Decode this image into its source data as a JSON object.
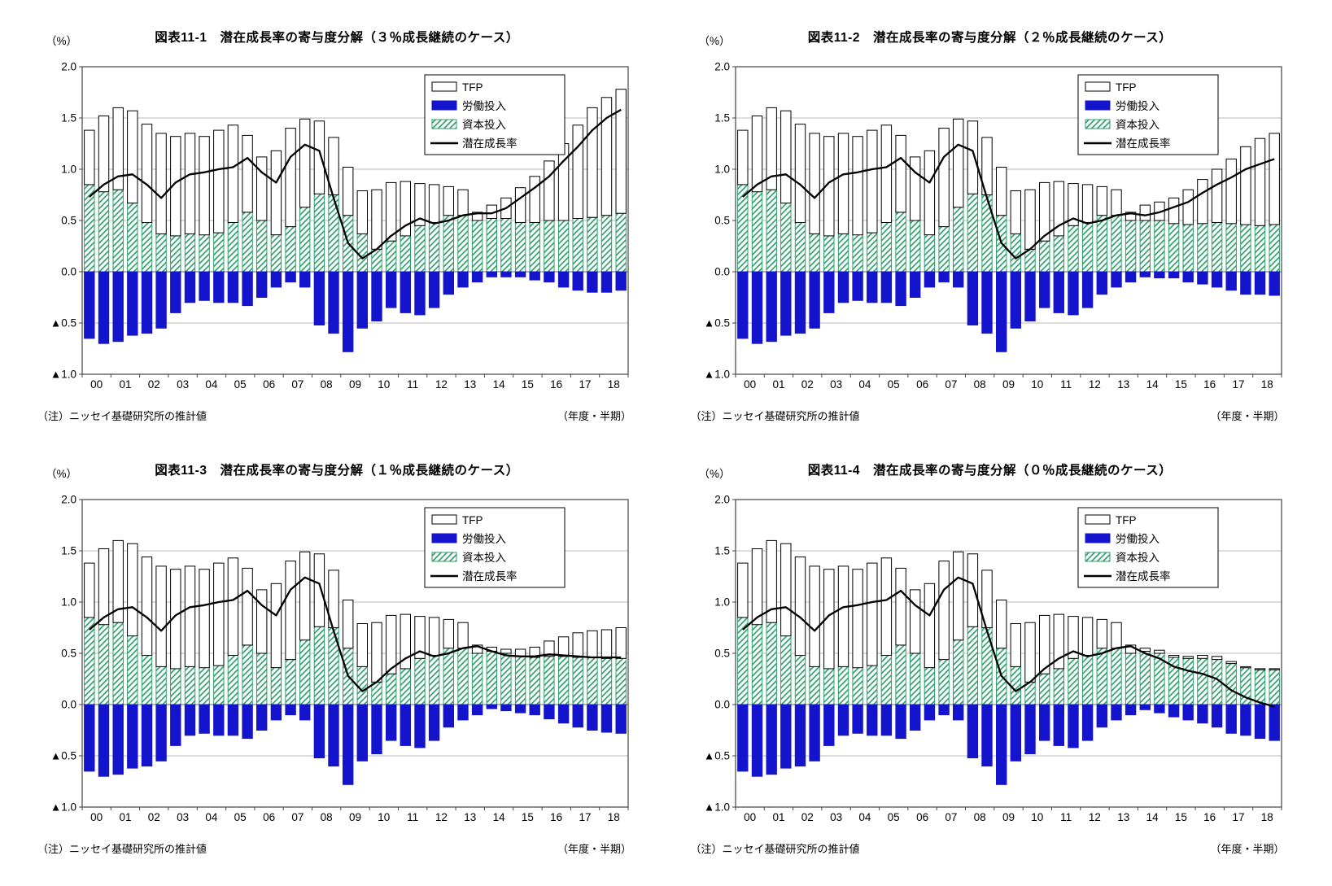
{
  "style": {
    "labor_color": "#1414cd",
    "capital_color": "#2e9e6e",
    "line_color": "#000000",
    "tfp_fill": "#ffffff",
    "bar_border": "#000000",
    "grid_color": "#bbbbbb",
    "axis_color": "#444444"
  },
  "charts": [
    {
      "title": "図表11-1　潜在成長率の寄与度分解（３％成長継続のケース）",
      "unit_label": "（%）",
      "source_note": "（注）ニッセイ基礎研究所の推計値",
      "axis_note": "（年度・半期）",
      "chart_data": {
        "type": "stacked_bar_with_line",
        "x_tick_labels": [
          "00",
          "01",
          "02",
          "03",
          "04",
          "05",
          "06",
          "07",
          "08",
          "09",
          "10",
          "11",
          "12",
          "13",
          "14",
          "15",
          "16",
          "17",
          "18"
        ],
        "ylim": [
          -1.0,
          2.0
        ],
        "y_ticks": [
          2.0,
          1.5,
          1.0,
          0.5,
          0.0,
          -0.5,
          -1.0
        ],
        "y_tick_labels": [
          "2.0",
          "1.5",
          "1.0",
          "0.5",
          "0.0",
          "▲0.5",
          "▲1.0"
        ],
        "legend_position": "top-right",
        "series": [
          {
            "name": "TFP",
            "kind": "bar",
            "stack": "positive-top",
            "values": [
              0.53,
              0.74,
              0.8,
              0.9,
              0.96,
              0.98,
              0.97,
              0.98,
              0.96,
              1.0,
              0.95,
              0.75,
              0.62,
              0.82,
              0.96,
              0.86,
              0.71,
              0.56,
              0.47,
              0.42,
              0.58,
              0.57,
              0.53,
              0.41,
              0.37,
              0.28,
              0.25,
              0.08,
              0.13,
              0.2,
              0.34,
              0.45,
              0.58,
              0.75,
              0.91,
              1.07,
              1.15,
              1.21
            ]
          },
          {
            "name": "労働投入",
            "kind": "bar",
            "stack": "negative",
            "values": [
              -0.65,
              -0.7,
              -0.68,
              -0.62,
              -0.6,
              -0.55,
              -0.4,
              -0.3,
              -0.28,
              -0.3,
              -0.3,
              -0.33,
              -0.25,
              -0.15,
              -0.1,
              -0.15,
              -0.52,
              -0.6,
              -0.78,
              -0.55,
              -0.48,
              -0.35,
              -0.4,
              -0.42,
              -0.35,
              -0.22,
              -0.15,
              -0.1,
              -0.05,
              -0.05,
              -0.05,
              -0.08,
              -0.1,
              -0.15,
              -0.18,
              -0.2,
              -0.2,
              -0.18
            ]
          },
          {
            "name": "資本投入",
            "kind": "bar",
            "stack": "positive-base",
            "values": [
              0.85,
              0.78,
              0.8,
              0.67,
              0.48,
              0.37,
              0.35,
              0.37,
              0.36,
              0.38,
              0.48,
              0.58,
              0.5,
              0.36,
              0.44,
              0.63,
              0.76,
              0.75,
              0.55,
              0.37,
              0.22,
              0.3,
              0.35,
              0.45,
              0.48,
              0.55,
              0.55,
              0.5,
              0.52,
              0.52,
              0.48,
              0.48,
              0.5,
              0.5,
              0.52,
              0.53,
              0.55,
              0.57
            ]
          },
          {
            "name": "潜在成長率",
            "kind": "line",
            "values": [
              0.73,
              0.85,
              0.93,
              0.95,
              0.85,
              0.72,
              0.87,
              0.95,
              0.97,
              1.0,
              1.02,
              1.11,
              0.97,
              0.87,
              1.12,
              1.24,
              1.18,
              0.72,
              0.28,
              0.13,
              0.22,
              0.35,
              0.45,
              0.52,
              0.47,
              0.5,
              0.55,
              0.57,
              0.57,
              0.62,
              0.72,
              0.82,
              0.93,
              1.08,
              1.22,
              1.38,
              1.5,
              1.58
            ]
          }
        ]
      }
    },
    {
      "title": "図表11-2　潜在成長率の寄与度分解（２％成長継続のケース）",
      "unit_label": "（%）",
      "source_note": "（注）ニッセイ基礎研究所の推計値",
      "axis_note": "（年度・半期）",
      "chart_data": {
        "type": "stacked_bar_with_line",
        "x_tick_labels": [
          "00",
          "01",
          "02",
          "03",
          "04",
          "05",
          "06",
          "07",
          "08",
          "09",
          "10",
          "11",
          "12",
          "13",
          "14",
          "15",
          "16",
          "17",
          "18"
        ],
        "ylim": [
          -1.0,
          2.0
        ],
        "y_ticks": [
          2.0,
          1.5,
          1.0,
          0.5,
          0.0,
          -0.5,
          -1.0
        ],
        "y_tick_labels": [
          "2.0",
          "1.5",
          "1.0",
          "0.5",
          "0.0",
          "▲0.5",
          "▲1.0"
        ],
        "legend_position": "top-right",
        "series": [
          {
            "name": "TFP",
            "kind": "bar",
            "stack": "positive-top",
            "values": [
              0.53,
              0.74,
              0.8,
              0.9,
              0.96,
              0.98,
              0.97,
              0.98,
              0.96,
              1.0,
              0.95,
              0.75,
              0.62,
              0.82,
              0.96,
              0.86,
              0.71,
              0.56,
              0.47,
              0.42,
              0.58,
              0.57,
              0.53,
              0.41,
              0.37,
              0.28,
              0.25,
              0.08,
              0.15,
              0.18,
              0.25,
              0.34,
              0.43,
              0.52,
              0.63,
              0.76,
              0.85,
              0.89
            ]
          },
          {
            "name": "労働投入",
            "kind": "bar",
            "stack": "negative",
            "values": [
              -0.65,
              -0.7,
              -0.68,
              -0.62,
              -0.6,
              -0.55,
              -0.4,
              -0.3,
              -0.28,
              -0.3,
              -0.3,
              -0.33,
              -0.25,
              -0.15,
              -0.1,
              -0.15,
              -0.52,
              -0.6,
              -0.78,
              -0.55,
              -0.48,
              -0.35,
              -0.4,
              -0.42,
              -0.35,
              -0.22,
              -0.15,
              -0.1,
              -0.05,
              -0.06,
              -0.06,
              -0.1,
              -0.12,
              -0.15,
              -0.18,
              -0.22,
              -0.22,
              -0.23
            ]
          },
          {
            "name": "資本投入",
            "kind": "bar",
            "stack": "positive-base",
            "values": [
              0.85,
              0.78,
              0.8,
              0.67,
              0.48,
              0.37,
              0.35,
              0.37,
              0.36,
              0.38,
              0.48,
              0.58,
              0.5,
              0.36,
              0.44,
              0.63,
              0.76,
              0.75,
              0.55,
              0.37,
              0.22,
              0.3,
              0.35,
              0.45,
              0.48,
              0.55,
              0.55,
              0.5,
              0.5,
              0.5,
              0.47,
              0.46,
              0.47,
              0.48,
              0.47,
              0.46,
              0.45,
              0.46
            ]
          },
          {
            "name": "潜在成長率",
            "kind": "line",
            "values": [
              0.73,
              0.85,
              0.93,
              0.95,
              0.85,
              0.72,
              0.87,
              0.95,
              0.97,
              1.0,
              1.02,
              1.11,
              0.97,
              0.87,
              1.12,
              1.24,
              1.18,
              0.72,
              0.28,
              0.13,
              0.22,
              0.35,
              0.45,
              0.52,
              0.47,
              0.5,
              0.55,
              0.57,
              0.55,
              0.58,
              0.63,
              0.68,
              0.77,
              0.85,
              0.92,
              1.0,
              1.05,
              1.1
            ]
          }
        ]
      }
    },
    {
      "title": "図表11-3　潜在成長率の寄与度分解（１％成長継続のケース）",
      "unit_label": "（%）",
      "source_note": "（注）ニッセイ基礎研究所の推計値",
      "axis_note": "（年度・半期）",
      "chart_data": {
        "type": "stacked_bar_with_line",
        "x_tick_labels": [
          "00",
          "01",
          "02",
          "03",
          "04",
          "05",
          "06",
          "07",
          "08",
          "09",
          "10",
          "11",
          "12",
          "13",
          "14",
          "15",
          "16",
          "17",
          "18"
        ],
        "ylim": [
          -1.0,
          2.0
        ],
        "y_ticks": [
          2.0,
          1.5,
          1.0,
          0.5,
          0.0,
          -0.5,
          -1.0
        ],
        "y_tick_labels": [
          "2.0",
          "1.5",
          "1.0",
          "0.5",
          "0.0",
          "▲0.5",
          "▲1.0"
        ],
        "legend_position": "top-right",
        "series": [
          {
            "name": "TFP",
            "kind": "bar",
            "stack": "positive-top",
            "values": [
              0.53,
              0.74,
              0.8,
              0.9,
              0.96,
              0.98,
              0.97,
              0.98,
              0.96,
              1.0,
              0.95,
              0.75,
              0.62,
              0.82,
              0.96,
              0.86,
              0.71,
              0.56,
              0.47,
              0.42,
              0.58,
              0.57,
              0.53,
              0.41,
              0.37,
              0.28,
              0.25,
              0.08,
              0.04,
              0.04,
              0.07,
              0.1,
              0.15,
              0.19,
              0.24,
              0.26,
              0.28,
              0.3
            ]
          },
          {
            "name": "労働投入",
            "kind": "bar",
            "stack": "negative",
            "values": [
              -0.65,
              -0.7,
              -0.68,
              -0.62,
              -0.6,
              -0.55,
              -0.4,
              -0.3,
              -0.28,
              -0.3,
              -0.3,
              -0.33,
              -0.25,
              -0.15,
              -0.1,
              -0.15,
              -0.52,
              -0.6,
              -0.78,
              -0.55,
              -0.48,
              -0.35,
              -0.4,
              -0.42,
              -0.35,
              -0.22,
              -0.15,
              -0.1,
              -0.04,
              -0.06,
              -0.08,
              -0.1,
              -0.14,
              -0.18,
              -0.22,
              -0.25,
              -0.27,
              -0.28
            ]
          },
          {
            "name": "資本投入",
            "kind": "bar",
            "stack": "positive-base",
            "values": [
              0.85,
              0.78,
              0.8,
              0.67,
              0.48,
              0.37,
              0.35,
              0.37,
              0.36,
              0.38,
              0.48,
              0.58,
              0.5,
              0.36,
              0.44,
              0.63,
              0.76,
              0.75,
              0.55,
              0.37,
              0.22,
              0.3,
              0.35,
              0.45,
              0.48,
              0.55,
              0.55,
              0.5,
              0.52,
              0.5,
              0.47,
              0.46,
              0.47,
              0.47,
              0.46,
              0.46,
              0.45,
              0.45
            ]
          },
          {
            "name": "潜在成長率",
            "kind": "line",
            "values": [
              0.73,
              0.85,
              0.93,
              0.95,
              0.85,
              0.72,
              0.87,
              0.95,
              0.97,
              1.0,
              1.02,
              1.11,
              0.97,
              0.87,
              1.12,
              1.24,
              1.18,
              0.72,
              0.28,
              0.13,
              0.22,
              0.35,
              0.45,
              0.52,
              0.47,
              0.5,
              0.55,
              0.57,
              0.52,
              0.48,
              0.47,
              0.47,
              0.49,
              0.48,
              0.47,
              0.46,
              0.46,
              0.46
            ]
          }
        ]
      }
    },
    {
      "title": "図表11-4　潜在成長率の寄与度分解（０％成長継続のケース）",
      "unit_label": "（%）",
      "source_note": "（注）ニッセイ基礎研究所の推計値",
      "axis_note": "（年度・半期）",
      "chart_data": {
        "type": "stacked_bar_with_line",
        "x_tick_labels": [
          "00",
          "01",
          "02",
          "03",
          "04",
          "05",
          "06",
          "07",
          "08",
          "09",
          "10",
          "11",
          "12",
          "13",
          "14",
          "15",
          "16",
          "17",
          "18"
        ],
        "ylim": [
          -1.0,
          2.0
        ],
        "y_ticks": [
          2.0,
          1.5,
          1.0,
          0.5,
          0.0,
          -0.5,
          -1.0
        ],
        "y_tick_labels": [
          "2.0",
          "1.5",
          "1.0",
          "0.5",
          "0.0",
          "▲0.5",
          "▲1.0"
        ],
        "legend_position": "top-right",
        "series": [
          {
            "name": "TFP",
            "kind": "bar",
            "stack": "positive-top",
            "values": [
              0.53,
              0.74,
              0.8,
              0.9,
              0.96,
              0.98,
              0.97,
              0.98,
              0.96,
              1.0,
              0.95,
              0.75,
              0.62,
              0.82,
              0.96,
              0.86,
              0.71,
              0.56,
              0.47,
              0.42,
              0.58,
              0.57,
              0.53,
              0.41,
              0.37,
              0.28,
              0.25,
              0.08,
              0.03,
              0.03,
              0.02,
              0.02,
              0.03,
              0.03,
              0.02,
              0.01,
              0.01,
              0.01
            ]
          },
          {
            "name": "労働投入",
            "kind": "bar",
            "stack": "negative",
            "values": [
              -0.65,
              -0.7,
              -0.68,
              -0.62,
              -0.6,
              -0.55,
              -0.4,
              -0.3,
              -0.28,
              -0.3,
              -0.3,
              -0.33,
              -0.25,
              -0.15,
              -0.1,
              -0.15,
              -0.52,
              -0.6,
              -0.78,
              -0.55,
              -0.48,
              -0.35,
              -0.4,
              -0.42,
              -0.35,
              -0.22,
              -0.15,
              -0.1,
              -0.05,
              -0.08,
              -0.12,
              -0.15,
              -0.18,
              -0.22,
              -0.28,
              -0.3,
              -0.33,
              -0.35
            ]
          },
          {
            "name": "資本投入",
            "kind": "bar",
            "stack": "positive-base",
            "values": [
              0.85,
              0.78,
              0.8,
              0.67,
              0.48,
              0.37,
              0.35,
              0.37,
              0.36,
              0.38,
              0.48,
              0.58,
              0.5,
              0.36,
              0.44,
              0.63,
              0.76,
              0.75,
              0.55,
              0.37,
              0.22,
              0.3,
              0.35,
              0.45,
              0.48,
              0.55,
              0.55,
              0.5,
              0.52,
              0.5,
              0.46,
              0.45,
              0.45,
              0.44,
              0.4,
              0.36,
              0.34,
              0.34
            ]
          },
          {
            "name": "潜在成長率",
            "kind": "line",
            "values": [
              0.73,
              0.85,
              0.93,
              0.95,
              0.85,
              0.72,
              0.87,
              0.95,
              0.97,
              1.0,
              1.02,
              1.11,
              0.97,
              0.87,
              1.12,
              1.24,
              1.18,
              0.72,
              0.28,
              0.13,
              0.22,
              0.35,
              0.45,
              0.52,
              0.47,
              0.5,
              0.55,
              0.57,
              0.5,
              0.45,
              0.37,
              0.33,
              0.3,
              0.25,
              0.14,
              0.07,
              0.02,
              -0.02
            ]
          }
        ]
      }
    }
  ]
}
